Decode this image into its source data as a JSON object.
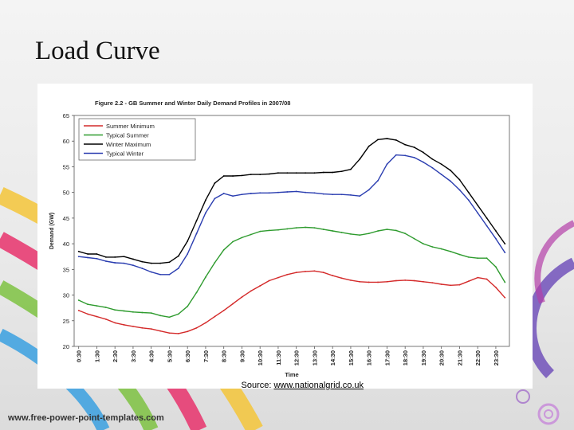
{
  "slide": {
    "title": "Load Curve",
    "source_prefix": "Source: ",
    "source_link": "www.nationalgrid.co.uk",
    "footer_url": "www.free-power-point-templates.com"
  },
  "chart_data": {
    "type": "line",
    "title": "Figure 2.2 - GB Summer and Winter Daily Demand Profiles in 2007/08",
    "xlabel": "Time",
    "ylabel": "Demand (GW)",
    "ylim": [
      20,
      65
    ],
    "yticks": [
      20,
      25,
      30,
      35,
      40,
      45,
      50,
      55,
      60,
      65
    ],
    "grid": false,
    "legend_position": "top-left",
    "x": [
      "0:30",
      "1:00",
      "1:30",
      "2:00",
      "2:30",
      "3:00",
      "3:30",
      "4:00",
      "4:30",
      "5:00",
      "5:30",
      "6:00",
      "6:30",
      "7:00",
      "7:30",
      "8:00",
      "8:30",
      "9:00",
      "9:30",
      "10:00",
      "10:30",
      "11:00",
      "11:30",
      "12:00",
      "12:30",
      "13:00",
      "13:30",
      "14:00",
      "14:30",
      "15:00",
      "15:30",
      "16:00",
      "16:30",
      "17:00",
      "17:30",
      "18:00",
      "18:30",
      "19:00",
      "19:30",
      "20:00",
      "20:30",
      "21:00",
      "21:30",
      "22:00",
      "22:30",
      "23:00",
      "23:30",
      "24:00"
    ],
    "xtick_labels": [
      "0:30",
      "1:30",
      "2:30",
      "3:30",
      "4:30",
      "5:30",
      "6:30",
      "7:30",
      "8:30",
      "9:30",
      "10:30",
      "11:30",
      "12:30",
      "13:30",
      "14:30",
      "15:30",
      "16:30",
      "17:30",
      "18:30",
      "19:30",
      "20:30",
      "21:30",
      "22:30",
      "23:30"
    ],
    "series": [
      {
        "name": "Summer Minimum",
        "color": "#d42a2a",
        "values": [
          27.0,
          26.3,
          25.8,
          25.3,
          24.6,
          24.2,
          23.9,
          23.6,
          23.4,
          23.0,
          22.6,
          22.5,
          22.9,
          23.6,
          24.6,
          25.8,
          27.0,
          28.3,
          29.6,
          30.8,
          31.8,
          32.8,
          33.4,
          34.0,
          34.4,
          34.6,
          34.7,
          34.4,
          33.8,
          33.3,
          32.9,
          32.6,
          32.5,
          32.5,
          32.6,
          32.8,
          32.9,
          32.8,
          32.6,
          32.4,
          32.1,
          31.9,
          32.0,
          32.7,
          33.4,
          33.1,
          31.5,
          29.5
        ]
      },
      {
        "name": "Typical Summer",
        "color": "#2e9b2e",
        "values": [
          29.0,
          28.2,
          27.9,
          27.6,
          27.1,
          26.9,
          26.7,
          26.6,
          26.5,
          26.0,
          25.7,
          26.3,
          27.8,
          30.5,
          33.5,
          36.3,
          38.8,
          40.4,
          41.2,
          41.8,
          42.4,
          42.6,
          42.7,
          42.9,
          43.1,
          43.2,
          43.1,
          42.8,
          42.5,
          42.2,
          41.9,
          41.7,
          42.0,
          42.5,
          42.8,
          42.6,
          42.0,
          41.0,
          40.0,
          39.4,
          39.0,
          38.5,
          37.9,
          37.4,
          37.2,
          37.2,
          35.5,
          32.5
        ]
      },
      {
        "name": "Winter Maximum",
        "color": "#000000",
        "values": [
          38.5,
          38.0,
          38.0,
          37.4,
          37.4,
          37.5,
          37.0,
          36.5,
          36.2,
          36.2,
          36.4,
          37.6,
          40.5,
          44.5,
          48.5,
          51.8,
          53.2,
          53.2,
          53.3,
          53.5,
          53.5,
          53.6,
          53.8,
          53.8,
          53.8,
          53.8,
          53.8,
          53.9,
          53.9,
          54.1,
          54.5,
          56.5,
          59.0,
          60.3,
          60.5,
          60.2,
          59.3,
          58.8,
          57.8,
          56.5,
          55.5,
          54.3,
          52.5,
          50.0,
          47.5,
          45.0,
          42.5,
          40.0
        ]
      },
      {
        "name": "Typical Winter",
        "color": "#2a3db0",
        "values": [
          37.5,
          37.3,
          37.1,
          36.6,
          36.3,
          36.2,
          35.8,
          35.2,
          34.5,
          34.0,
          34.0,
          35.2,
          38.0,
          42.0,
          46.0,
          48.8,
          49.8,
          49.3,
          49.6,
          49.8,
          49.9,
          49.9,
          50.0,
          50.1,
          50.2,
          50.0,
          49.9,
          49.7,
          49.6,
          49.6,
          49.5,
          49.3,
          50.5,
          52.3,
          55.5,
          57.3,
          57.2,
          56.8,
          55.9,
          54.8,
          53.5,
          52.2,
          50.5,
          48.5,
          46.0,
          43.5,
          41.0,
          38.3
        ]
      }
    ]
  }
}
